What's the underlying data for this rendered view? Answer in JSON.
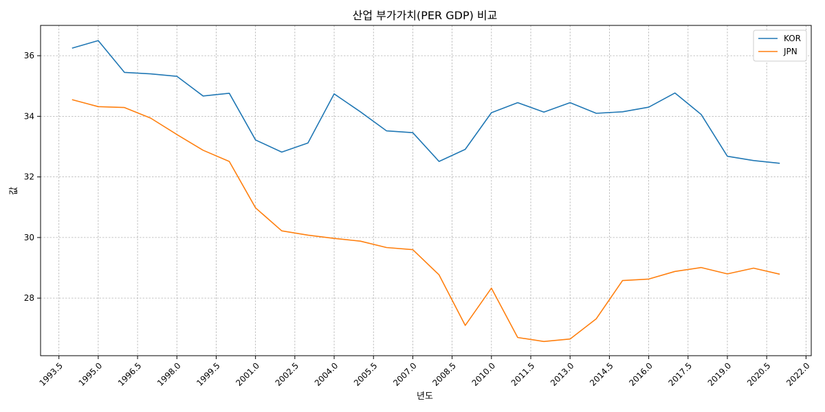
{
  "chart_data": {
    "type": "line",
    "title": "산업 부가가치(PER GDP) 비교",
    "xlabel": "년도",
    "ylabel": "값",
    "xlim": [
      1992.8,
      2022.2
    ],
    "ylim": [
      26.1,
      37.0
    ],
    "x_ticks": [
      "1993.5",
      "1995.0",
      "1996.5",
      "1998.0",
      "1999.5",
      "2001.0",
      "2002.5",
      "2004.0",
      "2005.5",
      "2007.0",
      "2008.5",
      "2010.0",
      "2011.5",
      "2013.0",
      "2014.5",
      "2016.0",
      "2017.5",
      "2019.0",
      "2020.5",
      "2022.0"
    ],
    "y_ticks": [
      "28",
      "30",
      "32",
      "34",
      "36"
    ],
    "grid": true,
    "legend_position": "top-right",
    "x": [
      1994,
      1995,
      1996,
      1997,
      1998,
      1999,
      2000,
      2001,
      2002,
      2003,
      2004,
      2005,
      2006,
      2007,
      2008,
      2009,
      2010,
      2011,
      2012,
      2013,
      2014,
      2015,
      2016,
      2017,
      2018,
      2019,
      2020,
      2021
    ],
    "series": [
      {
        "name": "KOR",
        "color": "#1f77b4",
        "values": [
          36.25,
          36.5,
          35.45,
          35.4,
          35.32,
          34.67,
          34.76,
          33.22,
          32.82,
          33.12,
          34.74,
          34.15,
          33.52,
          33.46,
          32.51,
          32.91,
          34.12,
          34.45,
          34.14,
          34.45,
          34.1,
          34.15,
          34.3,
          34.77,
          34.06,
          32.68,
          32.54,
          32.45
        ]
      },
      {
        "name": "JPN",
        "color": "#ff7f0e",
        "values": [
          34.55,
          34.32,
          34.29,
          33.94,
          33.4,
          32.88,
          32.51,
          30.98,
          30.22,
          30.08,
          29.97,
          29.88,
          29.67,
          29.6,
          28.77,
          27.1,
          28.33,
          26.7,
          26.57,
          26.65,
          27.32,
          28.58,
          28.63,
          28.88,
          29.01,
          28.8,
          28.99,
          28.79
        ]
      }
    ]
  }
}
